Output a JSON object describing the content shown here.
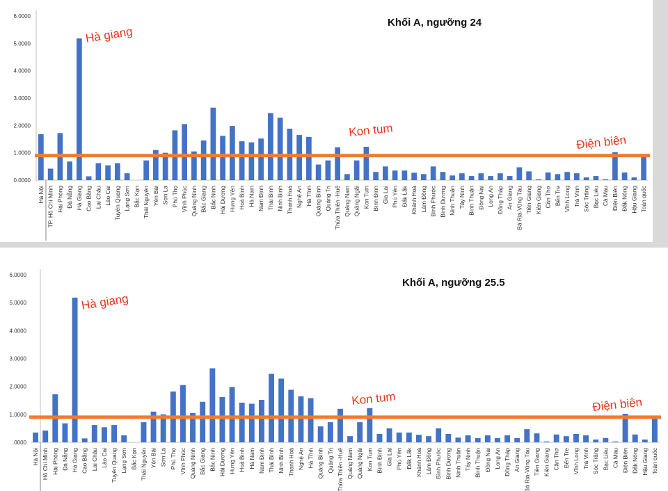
{
  "chart_data": [
    {
      "type": "bar",
      "title": "Khối A, ngưỡng 24",
      "xlabel": "",
      "ylabel": "",
      "ylim": [
        0,
        6
      ],
      "ytick_labels": [
        "0.0000",
        "1.0000",
        "2.0000",
        "3.0000",
        "4.0000",
        "5.0000",
        "6.0000"
      ],
      "threshold": 0.9,
      "categories": [
        "Hà Nội",
        "TP. Hồ Chí Minh",
        "Hải Phòng",
        "Đà Nẵng",
        "Hà Giang",
        "Cao Bằng",
        "Lai Châu",
        "Lào Cai",
        "Tuyên Quang",
        "Lạng Sơn",
        "Bắc Kạn",
        "Thái Nguyên",
        "Yên Bái",
        "Sơn La",
        "Phú Thọ",
        "Vĩnh Phúc",
        "Quảng Ninh",
        "Bắc Giang",
        "Bắc Ninh",
        "Hải Dương",
        "Hưng Yên",
        "Hoà Bình",
        "Hà Nam",
        "Nam Định",
        "Thái Bình",
        "Ninh Bình",
        "Thanh Hoá",
        "Nghệ An",
        "Hà Tĩnh",
        "Quảng Bình",
        "Quảng Trị",
        "Thừa Thiên -Huế",
        "Quảng Nam",
        "Quảng Ngãi",
        "Kon Tum",
        "Bình Định",
        "Gia Lai",
        "Phú Yên",
        "Đắk Lắk",
        "Khánh Hoà",
        "Lâm Đồng",
        "Bình Phước",
        "Bình Dương",
        "Ninh Thuận",
        "Tây Ninh",
        "Bình Thuận",
        "Đồng Nai",
        "Long An",
        "Đồng Tháp",
        "An Giang",
        "Bà Rịa-Vũng Tàu",
        "Tiền Giang",
        "Kiên Giang",
        "Cần Thơ",
        "Bến Tre",
        "Vĩnh Long",
        "Trà Vinh",
        "Sóc Trăng",
        "Bạc Liêu",
        "Cà Mau",
        "Điện Biên",
        "Đắk Nông",
        "Hậu Giang",
        "Toàn quốc"
      ],
      "values": [
        1.68,
        0.42,
        1.72,
        0.68,
        5.18,
        0.14,
        0.62,
        0.54,
        0.62,
        0.25,
        0.0,
        0.72,
        1.1,
        1.0,
        1.82,
        2.05,
        1.05,
        1.45,
        2.65,
        1.62,
        1.98,
        1.42,
        1.38,
        1.52,
        2.45,
        2.28,
        1.88,
        1.65,
        1.58,
        0.57,
        0.72,
        1.2,
        0.22,
        0.72,
        1.22,
        0.3,
        0.5,
        0.35,
        0.35,
        0.27,
        0.22,
        0.5,
        0.3,
        0.17,
        0.25,
        0.15,
        0.25,
        0.15,
        0.25,
        0.15,
        0.47,
        0.32,
        0.03,
        0.28,
        0.22,
        0.3,
        0.25,
        0.1,
        0.15,
        0.03,
        1.02,
        0.28,
        0.1,
        0.9
      ],
      "annotations": [
        "Hà giang",
        "Kon tum",
        "Điện biên"
      ]
    },
    {
      "type": "bar",
      "title": "Khối A, ngưỡng 25.5",
      "xlabel": "",
      "ylabel": "",
      "ylim": [
        0,
        6
      ],
      "ytick_labels": [
        ".0000",
        "1.0000",
        "2.0000",
        "3.0000",
        "4.0000",
        "5.0000",
        "6.0000"
      ],
      "threshold": 0.9,
      "categories": [
        "Hà Nội",
        "Hồ Chí Minh",
        "Hải Phòng",
        "Đà Nẵng",
        "Hà Giang",
        "Cao Bằng",
        "Lai Châu",
        "Lào Cai",
        "Tuyên Quang",
        "Lạng Sơn",
        "Bắc Kạn",
        "Thái Nguyên",
        "Yên Bái",
        "Sơn La",
        "Phú Thọ",
        "Vĩnh Phúc",
        "Quảng Ninh",
        "Bắc Giang",
        "Bắc Ninh",
        "Hải Dương",
        "Hưng Yên",
        "Hoà Bình",
        "Hà Nam",
        "Nam Định",
        "Thái Bình",
        "Ninh Bình",
        "Thanh Hoá",
        "Nghệ An",
        "Hà Tĩnh",
        "Quảng Bình",
        "Quảng Trị",
        "Thừa Thiên -Huế",
        "Quảng Nam",
        "Quảng Ngãi",
        "Kon Tum",
        "Bình Định",
        "Gia Lai",
        "Phú Yên",
        "Đắk Lắk",
        "Khánh Hoà",
        "Lâm Đồng",
        "Bình Phước",
        "Bình Dương",
        "Ninh Thuận",
        "Tây Ninh",
        "Bình Thuận",
        "Đồng Nai",
        "Long An",
        "Đồng Tháp",
        "An Giang",
        "Bà Rịa-Vũng Tàu",
        "Tiền Giang",
        "Kiên Giang",
        "Cần Thơ",
        "Bến Tre",
        "Vĩnh Long",
        "Trà Vinh",
        "Sóc Trăng",
        "Bạc Liêu",
        "Cà Mau",
        "Điện Biên",
        "Đắk Nông",
        "Hậu Giang",
        "Toàn quốc"
      ],
      "values": [
        0.35,
        0.42,
        1.72,
        0.68,
        5.18,
        0.14,
        0.62,
        0.54,
        0.62,
        0.25,
        0.0,
        0.72,
        1.1,
        1.0,
        1.82,
        2.05,
        1.05,
        1.45,
        2.65,
        1.62,
        1.98,
        1.42,
        1.38,
        1.52,
        2.45,
        2.28,
        1.88,
        1.65,
        1.58,
        0.57,
        0.72,
        1.2,
        0.22,
        0.72,
        1.22,
        0.3,
        0.5,
        0.35,
        0.35,
        0.27,
        0.22,
        0.5,
        0.3,
        0.17,
        0.25,
        0.15,
        0.25,
        0.15,
        0.25,
        0.15,
        0.47,
        0.32,
        0.03,
        0.28,
        0.22,
        0.3,
        0.25,
        0.1,
        0.15,
        0.03,
        1.02,
        0.28,
        0.1,
        0.9
      ],
      "annotations": [
        "Hà giang",
        "Kon tum",
        "Điện biên"
      ]
    }
  ],
  "colors": {
    "bar": "#4472c4",
    "threshold_line": "#ed7d31",
    "annotation": "#e8331c"
  }
}
